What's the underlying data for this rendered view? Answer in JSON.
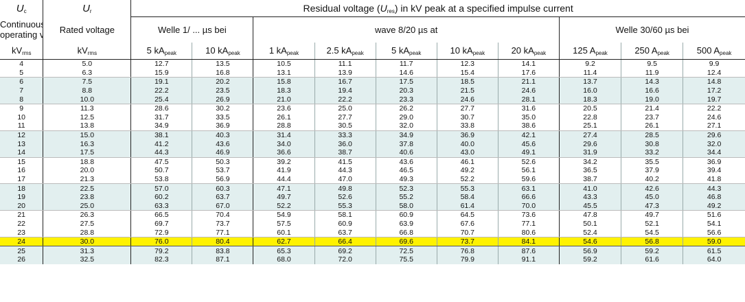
{
  "header": {
    "uc_symbol": "U",
    "uc_sub": "c",
    "ur_symbol": "U",
    "ur_sub": "r",
    "residual_title_pre": "Residual voltage (",
    "residual_symbol": "U",
    "residual_sub": "res",
    "residual_title_post": ") in kV peak at a specified impulse current",
    "col1_line1": "Continuous",
    "col1_line2": "operating voltage",
    "col2": "Rated voltage",
    "group1": "Welle 1/ ...  µs bei",
    "group2": "wave 8/20 µs at",
    "group3": "Welle 30/60 µs bei",
    "unit1": "kV",
    "unit1_sub": "rms",
    "unit2": "kV",
    "unit2_sub": "rms",
    "cols": [
      {
        "val": "5 kA",
        "sub": "peak"
      },
      {
        "val": "10 kA",
        "sub": "peak"
      },
      {
        "val": "1 kA",
        "sub": "peak"
      },
      {
        "val": "2.5 kA",
        "sub": "peak"
      },
      {
        "val": "5 kA",
        "sub": "peak"
      },
      {
        "val": "10 kA",
        "sub": "peak"
      },
      {
        "val": "20 kA",
        "sub": "peak"
      },
      {
        "val": "125 A",
        "sub": "peak"
      },
      {
        "val": "250 A",
        "sub": "peak"
      },
      {
        "val": "500 A",
        "sub": "peak"
      }
    ]
  },
  "rows": [
    [
      "4",
      "5.0",
      "12.7",
      "13.5",
      "10.5",
      "11.1",
      "11.7",
      "12.3",
      "14.1",
      "9.2",
      "9.5",
      "9.9"
    ],
    [
      "5",
      "6.3",
      "15.9",
      "16.8",
      "13.1",
      "13.9",
      "14.6",
      "15.4",
      "17.6",
      "11.4",
      "11.9",
      "12.4"
    ],
    [
      "6",
      "7.5",
      "19.1",
      "20.2",
      "15.8",
      "16.7",
      "17.5",
      "18.5",
      "21.1",
      "13.7",
      "14.3",
      "14.8"
    ],
    [
      "7",
      "8.8",
      "22.2",
      "23.5",
      "18.3",
      "19.4",
      "20.3",
      "21.5",
      "24.6",
      "16.0",
      "16.6",
      "17.2"
    ],
    [
      "8",
      "10.0",
      "25.4",
      "26.9",
      "21.0",
      "22.2",
      "23.3",
      "24.6",
      "28.1",
      "18.3",
      "19.0",
      "19.7"
    ],
    [
      "9",
      "11.3",
      "28.6",
      "30.2",
      "23.6",
      "25.0",
      "26.2",
      "27.7",
      "31.6",
      "20.5",
      "21.4",
      "22.2"
    ],
    [
      "10",
      "12.5",
      "31.7",
      "33.5",
      "26.1",
      "27.7",
      "29.0",
      "30.7",
      "35.0",
      "22.8",
      "23.7",
      "24.6"
    ],
    [
      "11",
      "13.8",
      "34.9",
      "36.9",
      "28.8",
      "30.5",
      "32.0",
      "33.8",
      "38.6",
      "25.1",
      "26.1",
      "27.1"
    ],
    [
      "12",
      "15.0",
      "38.1",
      "40.3",
      "31.4",
      "33.3",
      "34.9",
      "36.9",
      "42.1",
      "27.4",
      "28.5",
      "29.6"
    ],
    [
      "13",
      "16.3",
      "41.2",
      "43.6",
      "34.0",
      "36.0",
      "37.8",
      "40.0",
      "45.6",
      "29.6",
      "30.8",
      "32.0"
    ],
    [
      "14",
      "17.5",
      "44.3",
      "46.9",
      "36.6",
      "38.7",
      "40.6",
      "43.0",
      "49.1",
      "31.9",
      "33.2",
      "34.4"
    ],
    [
      "15",
      "18.8",
      "47.5",
      "50.3",
      "39.2",
      "41.5",
      "43.6",
      "46.1",
      "52.6",
      "34.2",
      "35.5",
      "36.9"
    ],
    [
      "16",
      "20.0",
      "50.7",
      "53.7",
      "41.9",
      "44.3",
      "46.5",
      "49.2",
      "56.1",
      "36.5",
      "37.9",
      "39.4"
    ],
    [
      "17",
      "21.3",
      "53.8",
      "56.9",
      "44.4",
      "47.0",
      "49.3",
      "52.2",
      "59.6",
      "38.7",
      "40.2",
      "41.8"
    ],
    [
      "18",
      "22.5",
      "57.0",
      "60.3",
      "47.1",
      "49.8",
      "52.3",
      "55.3",
      "63.1",
      "41.0",
      "42.6",
      "44.3"
    ],
    [
      "19",
      "23.8",
      "60.2",
      "63.7",
      "49.7",
      "52.6",
      "55.2",
      "58.4",
      "66.6",
      "43.3",
      "45.0",
      "46.8"
    ],
    [
      "20",
      "25.0",
      "63.3",
      "67.0",
      "52.2",
      "55.3",
      "58.0",
      "61.4",
      "70.0",
      "45.5",
      "47.3",
      "49.2"
    ],
    [
      "21",
      "26.3",
      "66.5",
      "70.4",
      "54.9",
      "58.1",
      "60.9",
      "64.5",
      "73.6",
      "47.8",
      "49.7",
      "51.6"
    ],
    [
      "22",
      "27.5",
      "69.7",
      "73.7",
      "57.5",
      "60.9",
      "63.9",
      "67.6",
      "77.1",
      "50.1",
      "52.1",
      "54.1"
    ],
    [
      "23",
      "28.8",
      "72.9",
      "77.1",
      "60.1",
      "63.7",
      "66.8",
      "70.7",
      "80.6",
      "52.4",
      "54.5",
      "56.6"
    ],
    [
      "24",
      "30.0",
      "76.0",
      "80.4",
      "62.7",
      "66.4",
      "69.6",
      "73.7",
      "84.1",
      "54.6",
      "56.8",
      "59.0"
    ],
    [
      "25",
      "31.3",
      "79.2",
      "83.8",
      "65.3",
      "69.2",
      "72.5",
      "76.8",
      "87.6",
      "56.9",
      "59.2",
      "61.5"
    ],
    [
      "26",
      "32.5",
      "82.3",
      "87.1",
      "68.0",
      "72.0",
      "75.5",
      "79.9",
      "91.1",
      "59.2",
      "61.6",
      "64.0"
    ]
  ],
  "row_styles": [
    "w",
    "w",
    "s",
    "s",
    "s",
    "w",
    "w",
    "w",
    "s",
    "s",
    "s",
    "w",
    "w",
    "w",
    "s",
    "s",
    "s",
    "w",
    "w",
    "w",
    "hl",
    "s",
    "s"
  ],
  "group_end_rows": [
    1,
    4,
    7,
    10,
    13,
    16,
    19,
    20
  ]
}
